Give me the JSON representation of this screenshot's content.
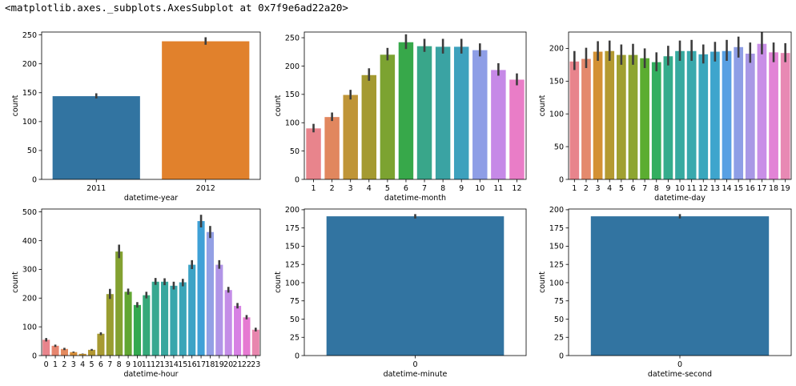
{
  "output": {
    "repr": "<matplotlib.axes._subplots.AxesSubplot at 0x7f9e6ad22a20>"
  },
  "chart_data": [
    {
      "type": "bar",
      "xlabel": "datetime-year",
      "ylabel": "count",
      "categories": [
        "2011",
        "2012"
      ],
      "values": [
        144,
        239
      ],
      "errors": [
        [
          140,
          149
        ],
        [
          233,
          246
        ]
      ],
      "ylim": [
        0,
        255
      ],
      "yticks": [
        0,
        50,
        100,
        150,
        200,
        250
      ],
      "colors": [
        "#3274a1",
        "#e1812c"
      ]
    },
    {
      "type": "bar",
      "xlabel": "datetime-month",
      "ylabel": "count",
      "categories": [
        "1",
        "2",
        "3",
        "4",
        "5",
        "6",
        "7",
        "8",
        "9",
        "10",
        "11",
        "12"
      ],
      "values": [
        90,
        110,
        149,
        184,
        220,
        242,
        235,
        234,
        234,
        228,
        193,
        176
      ],
      "errors": [
        [
          83,
          98
        ],
        [
          103,
          118
        ],
        [
          141,
          158
        ],
        [
          174,
          196
        ],
        [
          210,
          232
        ],
        [
          230,
          256
        ],
        [
          225,
          248
        ],
        [
          222,
          248
        ],
        [
          222,
          248
        ],
        [
          217,
          240
        ],
        [
          183,
          205
        ],
        [
          166,
          187
        ]
      ],
      "ylim": [
        0,
        260
      ],
      "yticks": [
        0,
        50,
        100,
        150,
        200,
        250
      ],
      "colors": [
        "#e8848c",
        "#e1875e",
        "#bf9538",
        "#a49a31",
        "#7ca331",
        "#37a84a",
        "#39a68a",
        "#3aa3a3",
        "#3da1bd",
        "#8e9ee6",
        "#c689e7",
        "#e97dc7"
      ]
    },
    {
      "type": "bar",
      "xlabel": "datetime-day",
      "ylabel": "count",
      "categories": [
        "1",
        "2",
        "3",
        "4",
        "5",
        "6",
        "7",
        "8",
        "9",
        "10",
        "11",
        "12",
        "13",
        "14",
        "15",
        "16",
        "17",
        "18",
        "19"
      ],
      "values": [
        180,
        184,
        195,
        196,
        190,
        190,
        185,
        179,
        188,
        196,
        196,
        191,
        195,
        196,
        202,
        192,
        207,
        194,
        193
      ],
      "errors": [
        [
          167,
          196
        ],
        [
          170,
          201
        ],
        [
          181,
          211
        ],
        [
          181,
          212
        ],
        [
          175,
          206
        ],
        [
          175,
          207
        ],
        [
          170,
          200
        ],
        [
          165,
          194
        ],
        [
          174,
          204
        ],
        [
          181,
          212
        ],
        [
          181,
          213
        ],
        [
          177,
          206
        ],
        [
          180,
          210
        ],
        [
          181,
          213
        ],
        [
          186,
          218
        ],
        [
          178,
          209
        ],
        [
          191,
          225
        ],
        [
          179,
          209
        ],
        [
          179,
          208
        ]
      ],
      "ylim": [
        0,
        225
      ],
      "yticks": [
        0,
        50,
        100,
        150,
        200
      ],
      "colors": [
        "#e8848c",
        "#e48a6d",
        "#d39134",
        "#b49a31",
        "#a0a031",
        "#8da531",
        "#5bad31",
        "#32ae5f",
        "#35ac8c",
        "#37aaa0",
        "#39a9ad",
        "#3aa7bd",
        "#3ea5cd",
        "#58a0e3",
        "#8e9ee6",
        "#a998e6",
        "#c98fe7",
        "#e283d6",
        "#e889b4"
      ]
    },
    {
      "type": "bar",
      "xlabel": "datetime-hour",
      "ylabel": "count",
      "categories": [
        "0",
        "1",
        "2",
        "3",
        "4",
        "5",
        "6",
        "7",
        "8",
        "9",
        "10",
        "11",
        "12",
        "13",
        "14",
        "15",
        "16",
        "17",
        "18",
        "19",
        "20",
        "21",
        "22",
        "23"
      ],
      "values": [
        55,
        34,
        23,
        12,
        6,
        20,
        76,
        214,
        362,
        222,
        176,
        210,
        257,
        257,
        243,
        255,
        316,
        468,
        430,
        316,
        228,
        173,
        133,
        90
      ],
      "errors": [
        [
          49,
          61
        ],
        [
          30,
          38
        ],
        [
          19,
          27
        ],
        [
          10,
          14
        ],
        [
          5,
          7
        ],
        [
          17,
          23
        ],
        [
          71,
          81
        ],
        [
          197,
          232
        ],
        [
          339,
          386
        ],
        [
          212,
          233
        ],
        [
          167,
          186
        ],
        [
          199,
          222
        ],
        [
          246,
          270
        ],
        [
          245,
          269
        ],
        [
          230,
          257
        ],
        [
          241,
          267
        ],
        [
          301,
          332
        ],
        [
          446,
          490
        ],
        [
          409,
          451
        ],
        [
          302,
          332
        ],
        [
          219,
          239
        ],
        [
          164,
          183
        ],
        [
          126,
          141
        ],
        [
          84,
          97
        ]
      ],
      "ylim": [
        0,
        510
      ],
      "yticks": [
        0,
        100,
        200,
        300,
        400,
        500
      ],
      "colors": [
        "#e8848c",
        "#e6856f",
        "#e38a5f",
        "#d9903a",
        "#c69432",
        "#b39832",
        "#a79a32",
        "#999d31",
        "#83a131",
        "#61a632",
        "#33a94f",
        "#36a97a",
        "#37a890",
        "#38a79f",
        "#39a6ac",
        "#3aa5b8",
        "#3ca3c6",
        "#3fa1d7",
        "#93a0e5",
        "#b195e7",
        "#c48de7",
        "#d781e4",
        "#e67ad2",
        "#e886ae"
      ]
    },
    {
      "type": "bar",
      "xlabel": "datetime-minute",
      "ylabel": "count",
      "categories": [
        "0"
      ],
      "values": [
        191
      ],
      "errors": [
        [
          188,
          194
        ]
      ],
      "ylim": [
        0,
        201
      ],
      "yticks": [
        0,
        25,
        50,
        75,
        100,
        125,
        150,
        175,
        200
      ],
      "colors": [
        "#3274a1"
      ]
    },
    {
      "type": "bar",
      "xlabel": "datetime-second",
      "ylabel": "count",
      "categories": [
        "0"
      ],
      "values": [
        191
      ],
      "errors": [
        [
          188,
          194
        ]
      ],
      "ylim": [
        0,
        201
      ],
      "yticks": [
        0,
        25,
        50,
        75,
        100,
        125,
        150,
        175,
        200
      ],
      "colors": [
        "#3274a1"
      ]
    }
  ]
}
